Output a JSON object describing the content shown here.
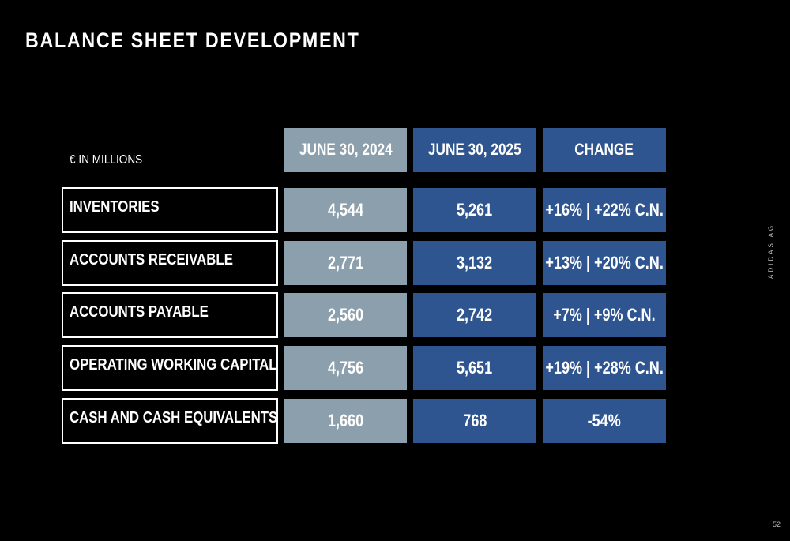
{
  "title": "BALANCE SHEET DEVELOPMENT",
  "unit_label": "€ IN MILLIONS",
  "headers": [
    "JUNE 30, 2024",
    "JUNE 30, 2025",
    "CHANGE"
  ],
  "rows": [
    {
      "label": "INVENTORIES",
      "v2024": "4,544",
      "v2025": "5,261",
      "change": "+16% | +22% C.N."
    },
    {
      "label": "ACCOUNTS RECEIVABLE",
      "v2024": "2,771",
      "v2025": "3,132",
      "change": "+13% | +20% C.N."
    },
    {
      "label": "ACCOUNTS PAYABLE",
      "v2024": "2,560",
      "v2025": "2,742",
      "change": "+7% | +9% C.N."
    },
    {
      "label": "OPERATING WORKING CAPITAL",
      "v2024": "4,756",
      "v2025": "5,651",
      "change": "+19% | +28% C.N."
    },
    {
      "label": "CASH AND CASH EQUIVALENTS",
      "v2024": "1,660",
      "v2025": "768",
      "change": "-54%"
    }
  ],
  "side_text": "ADIDAS AG",
  "page_number": "52",
  "colors": {
    "background": "#000000",
    "column_2024": "#8c9fac",
    "column_2025": "#2f5590",
    "column_change": "#2f5590"
  }
}
